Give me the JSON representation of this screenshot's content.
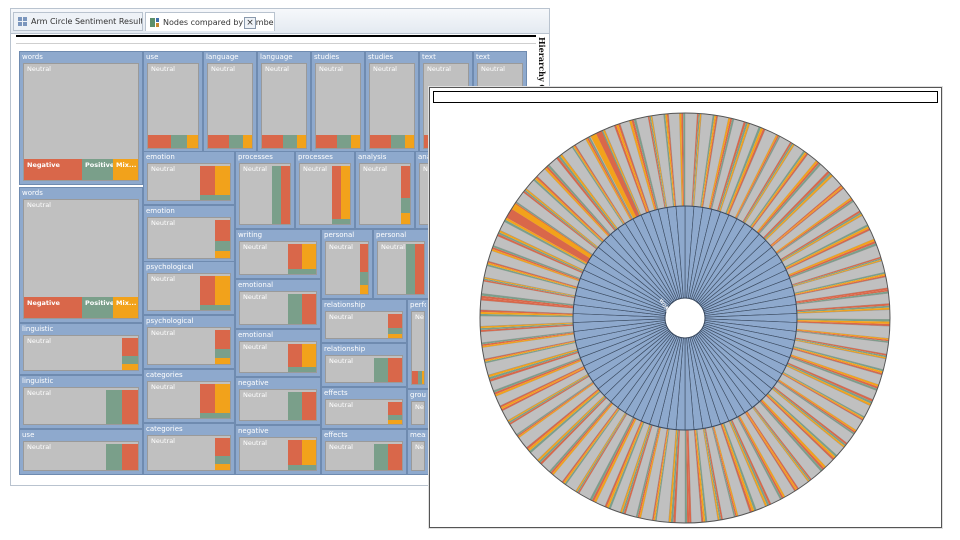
{
  "colors": {
    "header": "#8ea9cd",
    "neutral": "#c0c0c0",
    "negative": "#d9674a",
    "positive": "#7a9f8a",
    "mixed": "#f2a21b",
    "inner": "#8ea9cd"
  },
  "treemap_window": {
    "tabs": [
      {
        "label": "Arm Circle Sentiment Results",
        "icon": "grid-icon"
      },
      {
        "label": "Nodes compared by number of",
        "icon": "treemap-icon"
      }
    ],
    "close_label": "×",
    "chart_title": "Hierarchy Chart",
    "tiles": [
      {
        "name": "words",
        "body": "Neutral",
        "segs": [
          "Negative",
          "Positive",
          "Mix..."
        ]
      },
      {
        "name": "words",
        "body": "Neutral",
        "segs": [
          "Negative",
          "Positive",
          "Mix..."
        ]
      },
      {
        "name": "use",
        "body": "Neutral"
      },
      {
        "name": "language",
        "body": "Neutral"
      },
      {
        "name": "language",
        "body": "Neutral"
      },
      {
        "name": "studies",
        "body": "Neutral"
      },
      {
        "name": "studies",
        "body": "Neutral"
      },
      {
        "name": "text",
        "body": "Neutral"
      },
      {
        "name": "text",
        "body": "Neutral"
      },
      {
        "name": "emotion",
        "body": "Neutral"
      },
      {
        "name": "emotion",
        "body": "Neutral"
      },
      {
        "name": "processes",
        "body": "Neutral"
      },
      {
        "name": "processes",
        "body": "Neutral"
      },
      {
        "name": "analysis",
        "body": "Neutral"
      },
      {
        "name": "ana",
        "body": "Ne"
      },
      {
        "name": "writing",
        "body": "Neutral"
      },
      {
        "name": "personal",
        "body": "Neutral"
      },
      {
        "name": "personal",
        "body": "Neutral"
      },
      {
        "name": "psychological",
        "body": "Neutral"
      },
      {
        "name": "psychological",
        "body": "Neutral"
      },
      {
        "name": "emotional",
        "body": "Neutral"
      },
      {
        "name": "emotional",
        "body": "Neutral"
      },
      {
        "name": "relationship",
        "body": "Neutral"
      },
      {
        "name": "relationship",
        "body": "Neutral"
      },
      {
        "name": "perfo",
        "body": "Neut"
      },
      {
        "name": "linguistic",
        "body": "Neutral"
      },
      {
        "name": "linguistic",
        "body": "Neutral"
      },
      {
        "name": "categories",
        "body": "Neutral"
      },
      {
        "name": "categories",
        "body": "Neutral"
      },
      {
        "name": "negative",
        "body": "Neutral"
      },
      {
        "name": "negative",
        "body": "Neutral"
      },
      {
        "name": "effects",
        "body": "Neutral"
      },
      {
        "name": "effects",
        "body": "Neutral"
      },
      {
        "name": "group",
        "body": "Neut"
      },
      {
        "name": "measu",
        "body": "Neut"
      },
      {
        "name": "use",
        "body": "Neutral"
      }
    ]
  },
  "sunburst_window": {
    "center_labels": [
      "words",
      "words"
    ]
  }
}
